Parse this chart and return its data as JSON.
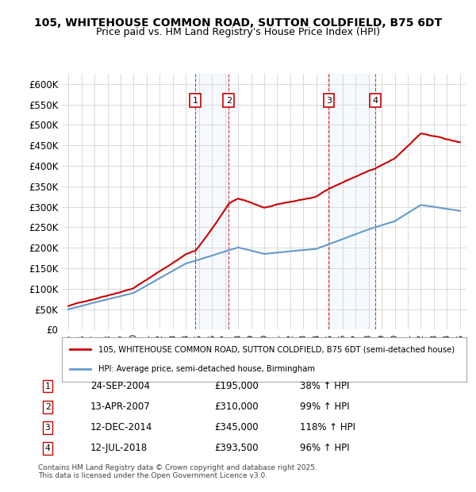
{
  "title_line1": "105, WHITEHOUSE COMMON ROAD, SUTTON COLDFIELD, B75 6DT",
  "title_line2": "Price paid vs. HM Land Registry's House Price Index (HPI)",
  "ylabel": "",
  "ylim": [
    0,
    625000
  ],
  "yticks": [
    0,
    50000,
    100000,
    150000,
    200000,
    250000,
    300000,
    350000,
    400000,
    450000,
    500000,
    550000,
    600000
  ],
  "ytick_labels": [
    "£0",
    "£50K",
    "£100K",
    "£150K",
    "£200K",
    "£250K",
    "£300K",
    "£350K",
    "£400K",
    "£450K",
    "£500K",
    "£550K",
    "£600K"
  ],
  "xlim_start": 1994.5,
  "xlim_end": 2025.5,
  "transactions": [
    {
      "num": 1,
      "date": "24-SEP-2004",
      "x": 2004.73,
      "price": 195000,
      "hpi_pct": "38%",
      "arrow": "↑"
    },
    {
      "num": 2,
      "date": "13-APR-2007",
      "x": 2007.28,
      "price": 310000,
      "hpi_pct": "99%",
      "arrow": "↑"
    },
    {
      "num": 3,
      "date": "12-DEC-2014",
      "x": 2014.95,
      "price": 345000,
      "hpi_pct": "118%",
      "arrow": "↑"
    },
    {
      "num": 4,
      "date": "12-JUL-2018",
      "x": 2018.53,
      "price": 393500,
      "hpi_pct": "96%",
      "arrow": "↑"
    }
  ],
  "legend_label_red": "105, WHITEHOUSE COMMON ROAD, SUTTON COLDFIELD, B75 6DT (semi-detached house)",
  "legend_label_blue": "HPI: Average price, semi-detached house, Birmingham",
  "footnote": "Contains HM Land Registry data © Crown copyright and database right 2025.\nThis data is licensed under the Open Government Licence v3.0.",
  "red_color": "#cc0000",
  "blue_color": "#6699cc",
  "shade_color": "#ddeeff",
  "background_color": "#ffffff",
  "grid_color": "#cccccc"
}
